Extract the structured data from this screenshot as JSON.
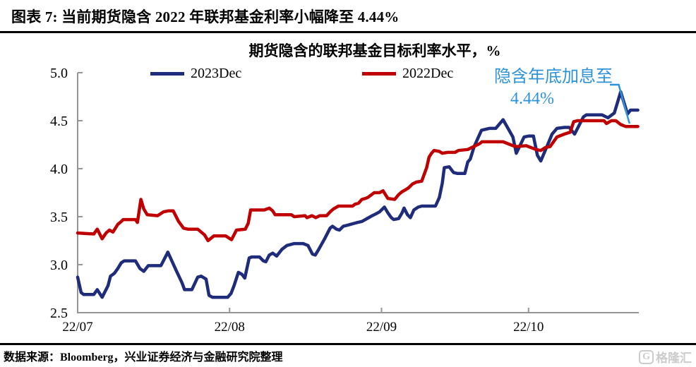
{
  "header": {
    "title": "图表 7: 当前期货隐含 2022 年联邦基金利率小幅降至 4.44%"
  },
  "chart_data": {
    "type": "line",
    "title": "期货隐含的联邦基金目标利率水平，%",
    "x_unit": "days since 2022-07-01",
    "xlim": [
      0,
      114.5
    ],
    "ylim": [
      2.5,
      5.0
    ],
    "grid": false,
    "legend_position": "top",
    "axis_color": "#969696",
    "y_ticks": [
      2.5,
      3.0,
      3.5,
      4.0,
      4.5,
      5.0
    ],
    "x_ticks": [
      {
        "label": "22/07",
        "day": 0
      },
      {
        "label": "22/08",
        "day": 31
      },
      {
        "label": "22/09",
        "day": 62
      },
      {
        "label": "22/10",
        "day": 92
      }
    ],
    "series": [
      {
        "name": "2023Dec",
        "color": "#1f2b7b",
        "points": [
          [
            0,
            2.87
          ],
          [
            0.7,
            2.71
          ],
          [
            1.2,
            2.69
          ],
          [
            3.3,
            2.69
          ],
          [
            4,
            2.74
          ],
          [
            5,
            2.66
          ],
          [
            6.2,
            2.78
          ],
          [
            6.7,
            2.88
          ],
          [
            7.5,
            2.91
          ],
          [
            8.2,
            2.96
          ],
          [
            8.9,
            3.02
          ],
          [
            9.5,
            3.04
          ],
          [
            11.8,
            3.04
          ],
          [
            12.7,
            2.96
          ],
          [
            13.5,
            2.93
          ],
          [
            14.4,
            2.99
          ],
          [
            17,
            2.99
          ],
          [
            18.4,
            3.13
          ],
          [
            20.1,
            2.94
          ],
          [
            21.3,
            2.81
          ],
          [
            21.8,
            2.74
          ],
          [
            23.3,
            2.74
          ],
          [
            24.5,
            2.87
          ],
          [
            25.2,
            2.88
          ],
          [
            26.2,
            2.85
          ],
          [
            26.8,
            2.68
          ],
          [
            27.5,
            2.66
          ],
          [
            30.6,
            2.66
          ],
          [
            31.3,
            2.7
          ],
          [
            31.9,
            2.78
          ],
          [
            32.8,
            2.92
          ],
          [
            33.5,
            2.9
          ],
          [
            34.1,
            2.86
          ],
          [
            35,
            3.07
          ],
          [
            35.5,
            3.08
          ],
          [
            37.1,
            3.08
          ],
          [
            37.9,
            3.04
          ],
          [
            38.4,
            3.03
          ],
          [
            39.1,
            3.1
          ],
          [
            39.8,
            3.12
          ],
          [
            40.6,
            3.09
          ],
          [
            41.7,
            3.16
          ],
          [
            42.7,
            3.2
          ],
          [
            44.2,
            3.22
          ],
          [
            46,
            3.22
          ],
          [
            47,
            3.2
          ],
          [
            47.9,
            3.11
          ],
          [
            48.5,
            3.1
          ],
          [
            49.2,
            3.16
          ],
          [
            50.4,
            3.27
          ],
          [
            51.5,
            3.38
          ],
          [
            52,
            3.4
          ],
          [
            52.8,
            3.37
          ],
          [
            53.4,
            3.36
          ],
          [
            54.2,
            3.4
          ],
          [
            55,
            3.41
          ],
          [
            56.4,
            3.43
          ],
          [
            57.1,
            3.44
          ],
          [
            58,
            3.45
          ],
          [
            59.4,
            3.49
          ],
          [
            60.1,
            3.51
          ],
          [
            60.9,
            3.53
          ],
          [
            61.6,
            3.55
          ],
          [
            62.6,
            3.6
          ],
          [
            63.3,
            3.54
          ],
          [
            64,
            3.49
          ],
          [
            64.5,
            3.47
          ],
          [
            65.5,
            3.48
          ],
          [
            66.2,
            3.54
          ],
          [
            66.6,
            3.59
          ],
          [
            67.3,
            3.52
          ],
          [
            67.9,
            3.49
          ],
          [
            68.6,
            3.57
          ],
          [
            69.5,
            3.6
          ],
          [
            70.2,
            3.61
          ],
          [
            73,
            3.61
          ],
          [
            73.8,
            3.7
          ],
          [
            74.4,
            3.85
          ],
          [
            74.8,
            4.01
          ],
          [
            75.8,
            4.02
          ],
          [
            76.7,
            3.96
          ],
          [
            77.5,
            3.95
          ],
          [
            79,
            3.95
          ],
          [
            79.6,
            4.07
          ],
          [
            80.1,
            4.1
          ],
          [
            80.9,
            4.23
          ],
          [
            82.4,
            4.4
          ],
          [
            84,
            4.42
          ],
          [
            85.3,
            4.42
          ],
          [
            86.8,
            4.51
          ],
          [
            87.7,
            4.43
          ],
          [
            88.8,
            4.33
          ],
          [
            89.5,
            4.16
          ],
          [
            91.1,
            4.33
          ],
          [
            92,
            4.34
          ],
          [
            93,
            4.34
          ],
          [
            93.8,
            4.14
          ],
          [
            94.5,
            4.08
          ],
          [
            95.4,
            4.19
          ],
          [
            96.8,
            4.36
          ],
          [
            97.8,
            4.42
          ],
          [
            99.3,
            4.43
          ],
          [
            100.3,
            4.43
          ],
          [
            101.4,
            4.36
          ],
          [
            103.2,
            4.54
          ],
          [
            103.8,
            4.56
          ],
          [
            107,
            4.56
          ],
          [
            108.2,
            4.53
          ],
          [
            109.5,
            4.58
          ],
          [
            110.8,
            4.8
          ],
          [
            112.2,
            4.57
          ],
          [
            112.8,
            4.61
          ],
          [
            114.3,
            4.61
          ]
        ]
      },
      {
        "name": "2022Dec",
        "color": "#c00000",
        "points": [
          [
            0,
            3.33
          ],
          [
            3.3,
            3.32
          ],
          [
            4,
            3.37
          ],
          [
            5,
            3.27
          ],
          [
            5.8,
            3.33
          ],
          [
            6.5,
            3.36
          ],
          [
            7.2,
            3.34
          ],
          [
            8.2,
            3.42
          ],
          [
            8.9,
            3.45
          ],
          [
            9.3,
            3.47
          ],
          [
            11.8,
            3.47
          ],
          [
            12.2,
            3.44
          ],
          [
            12.9,
            3.68
          ],
          [
            13.5,
            3.58
          ],
          [
            14.2,
            3.52
          ],
          [
            16.3,
            3.51
          ],
          [
            17.5,
            3.55
          ],
          [
            18.5,
            3.56
          ],
          [
            19.5,
            3.56
          ],
          [
            20.6,
            3.45
          ],
          [
            21.6,
            3.38
          ],
          [
            22.5,
            3.37
          ],
          [
            24.5,
            3.37
          ],
          [
            25.9,
            3.31
          ],
          [
            26.6,
            3.25
          ],
          [
            27.8,
            3.3
          ],
          [
            30.2,
            3.3
          ],
          [
            31.4,
            3.26
          ],
          [
            32.4,
            3.36
          ],
          [
            34.2,
            3.37
          ],
          [
            34.8,
            3.43
          ],
          [
            35.3,
            3.57
          ],
          [
            38.1,
            3.57
          ],
          [
            39.1,
            3.59
          ],
          [
            39.8,
            3.56
          ],
          [
            40.3,
            3.52
          ],
          [
            43.6,
            3.52
          ],
          [
            44.2,
            3.5
          ],
          [
            46.4,
            3.51
          ],
          [
            46.8,
            3.49
          ],
          [
            47.8,
            3.51
          ],
          [
            48.6,
            3.49
          ],
          [
            49.4,
            3.51
          ],
          [
            50.8,
            3.51
          ],
          [
            51.5,
            3.55
          ],
          [
            52.2,
            3.58
          ],
          [
            53.2,
            3.61
          ],
          [
            56.1,
            3.61
          ],
          [
            56.6,
            3.63
          ],
          [
            57.3,
            3.64
          ],
          [
            58,
            3.68
          ],
          [
            58.7,
            3.69
          ],
          [
            59.2,
            3.7
          ],
          [
            60,
            3.73
          ],
          [
            60.5,
            3.75
          ],
          [
            61.6,
            3.75
          ],
          [
            62.3,
            3.77
          ],
          [
            63.3,
            3.69
          ],
          [
            64.7,
            3.68
          ],
          [
            65.5,
            3.73
          ],
          [
            66.2,
            3.76
          ],
          [
            66.9,
            3.78
          ],
          [
            67.5,
            3.8
          ],
          [
            68.3,
            3.84
          ],
          [
            69.1,
            3.86
          ],
          [
            70.2,
            3.87
          ],
          [
            71.2,
            4.01
          ],
          [
            71.7,
            4.12
          ],
          [
            72.2,
            4.16
          ],
          [
            72.7,
            4.19
          ],
          [
            73.8,
            4.18
          ],
          [
            74.4,
            4.16
          ],
          [
            75.5,
            4.17
          ],
          [
            77,
            4.17
          ],
          [
            77.7,
            4.19
          ],
          [
            79.6,
            4.2
          ],
          [
            82,
            4.26
          ],
          [
            82.5,
            4.28
          ],
          [
            86.8,
            4.28
          ],
          [
            88.8,
            4.24
          ],
          [
            89.6,
            4.23
          ],
          [
            91.5,
            4.24
          ],
          [
            93.5,
            4.2
          ],
          [
            94.5,
            4.19
          ],
          [
            95.4,
            4.22
          ],
          [
            96.4,
            4.23
          ],
          [
            97.8,
            4.33
          ],
          [
            99.3,
            4.36
          ],
          [
            100.5,
            4.38
          ],
          [
            101.2,
            4.49
          ],
          [
            102,
            4.5
          ],
          [
            107.4,
            4.5
          ],
          [
            107.9,
            4.47
          ],
          [
            108.9,
            4.5
          ],
          [
            109.8,
            4.5
          ],
          [
            110.8,
            4.46
          ],
          [
            111.8,
            4.44
          ],
          [
            114.3,
            4.44
          ]
        ]
      }
    ],
    "annotation": {
      "line1": "隐含年底加息至",
      "line2": "4.44%",
      "color": "#2d93d8",
      "callout_points": [
        [
          108.6,
          4.875
        ],
        [
          110.4,
          4.875
        ],
        [
          112.6,
          4.47
        ]
      ]
    }
  },
  "footer": {
    "source": "数据来源：Bloomberg，兴业证券经济与金融研究院整理",
    "logo_text": "格隆汇"
  }
}
